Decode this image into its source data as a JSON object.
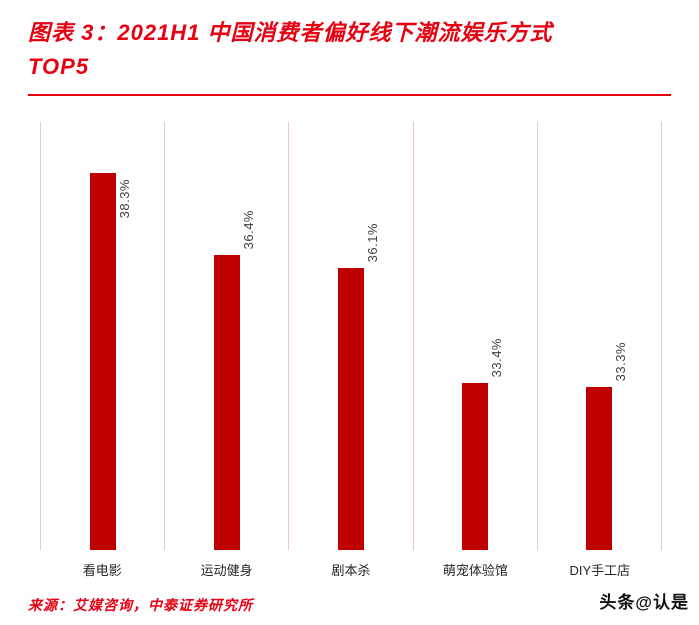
{
  "header": {
    "title_line1": "图表 3：2021H1 中国消费者偏好线下潮流娱乐方式",
    "title_line2": "TOP5"
  },
  "chart_data": {
    "type": "bar",
    "title": "2021H1 中国消费者偏好线下潮流娱乐方式TOP5",
    "categories": [
      "看电影",
      "运动健身",
      "剧本杀",
      "萌宠体验馆",
      "DIY手工店"
    ],
    "values": [
      38.3,
      36.4,
      36.1,
      33.4,
      33.3
    ],
    "value_labels": [
      "38.3%",
      "36.4%",
      "36.1%",
      "33.4%",
      "33.3%"
    ],
    "xlabel": "",
    "ylabel": "",
    "ylim": [
      29.5,
      39.5
    ],
    "grid": "vertical-category-separators",
    "legend_position": "none",
    "bar_color": "#c00000",
    "value_label_orientation": "rotated-90"
  },
  "footer": {
    "source": "来源：艾媒咨询，中泰证券研究所",
    "watermark": "头条@认是"
  },
  "colors": {
    "title_red": "#e60012",
    "bar_red": "#c00000",
    "separator_pink": "#efc6c6",
    "value_text": "#3f3f3f",
    "category_text": "#262626"
  }
}
